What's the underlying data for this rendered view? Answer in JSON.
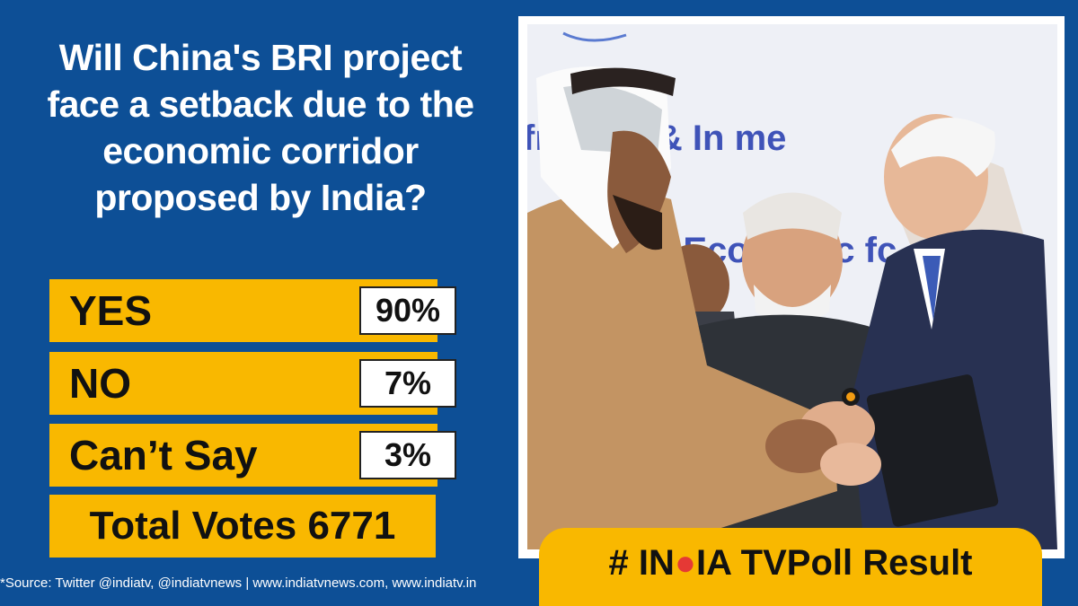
{
  "question": {
    "lines": [
      "Will China's BRI project",
      "face a setback due to the",
      "economic corridor",
      "proposed by India?"
    ]
  },
  "poll": {
    "options": [
      {
        "label": "YES",
        "percent": "90%",
        "value": 90
      },
      {
        "label": "NO",
        "percent": "7%",
        "value": 7
      },
      {
        "label": "Can’t Say",
        "percent": "3%",
        "value": 3
      }
    ],
    "total_label": "Total Votes 6771"
  },
  "source": "*Source: Twitter @indiatv, @indiatvnews | www.indiatvnews.com, www.indiatv.in",
  "photo": {
    "backdrop_text_top": "fr     cture & In     me",
    "backdrop_text_bottom": "e Economic      fc",
    "icon": "leaders-handshake-photo"
  },
  "banner": {
    "hash": "#",
    "brand_pre": "IN",
    "brand_post": "IA TV",
    "suffix": "Poll Result"
  },
  "colors": {
    "background": "#0d4f96",
    "accent": "#f9b800",
    "logo_dot": "#e53935"
  }
}
